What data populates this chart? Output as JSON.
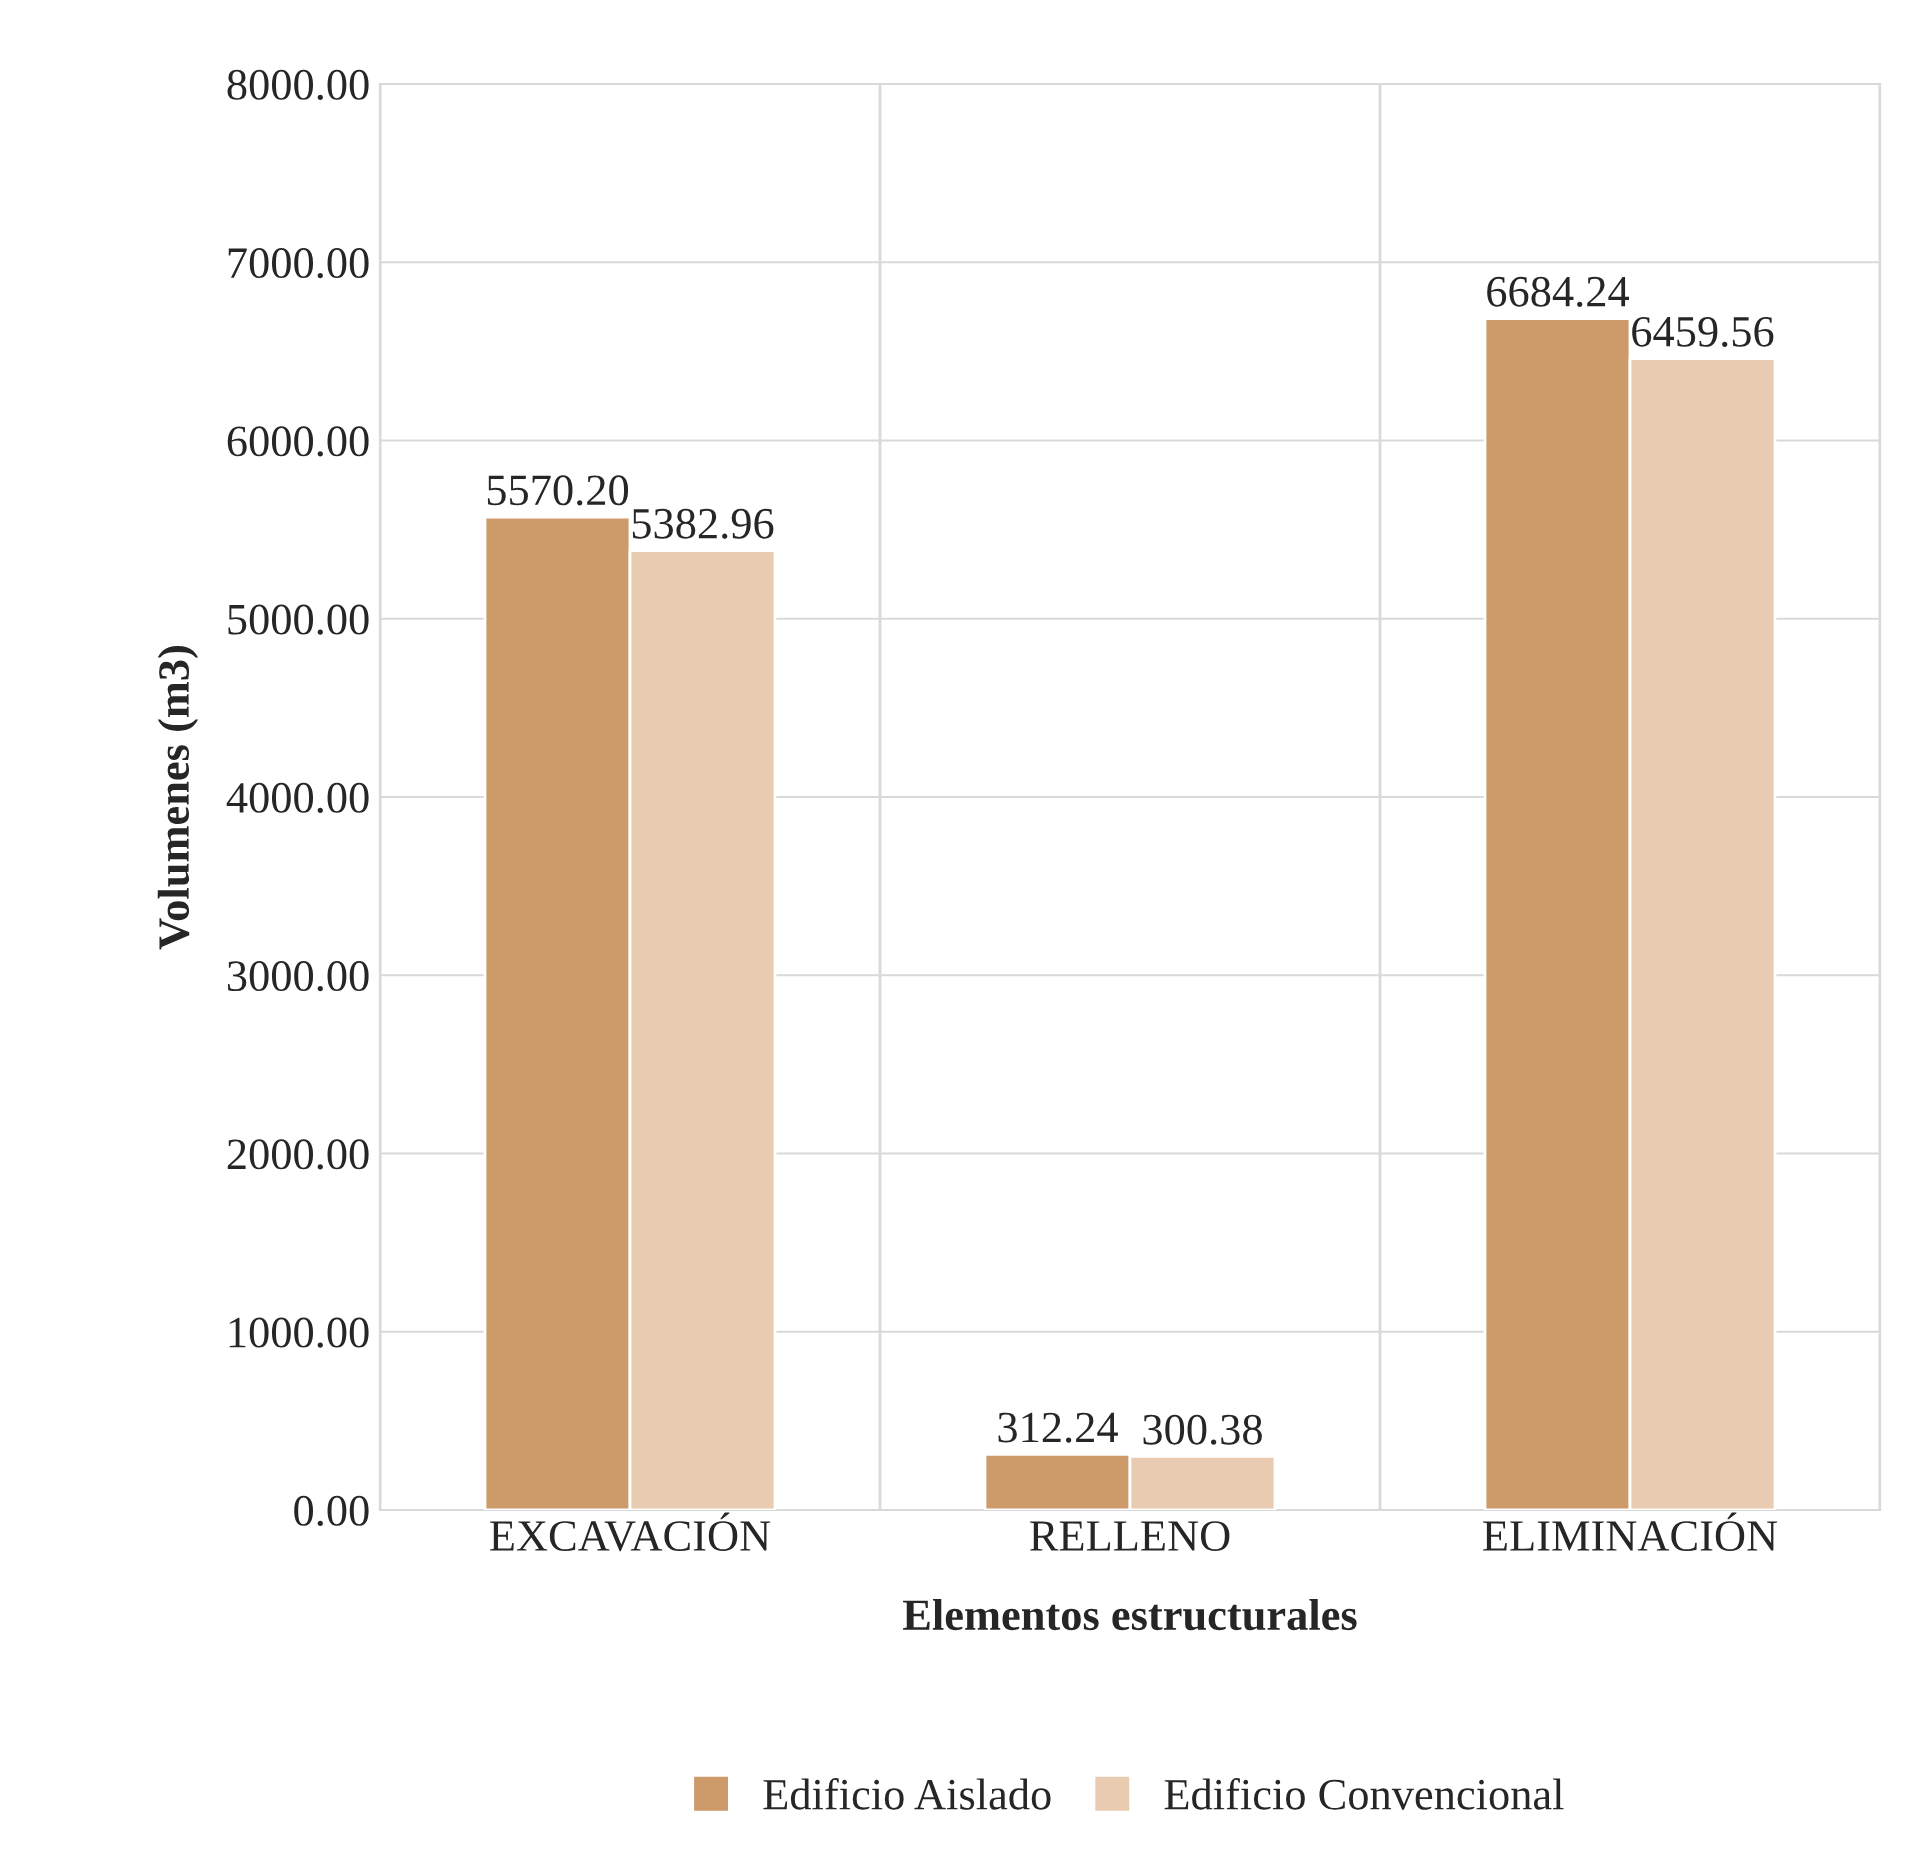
{
  "chart_data": {
    "type": "bar",
    "xlabel": "Elementos estructurales",
    "ylabel": "Volumenes (m3)",
    "categories": [
      "EXCAVACIÓN",
      "RELLENO",
      "ELIMINACIÓN"
    ],
    "series": [
      {
        "name": "Edificio Aislado",
        "color": "#cd9b6a",
        "values": [
          5570.2,
          312.24,
          6684.24
        ],
        "value_labels": [
          "5570.20",
          "312.24",
          "6684.24"
        ]
      },
      {
        "name": "Edificio Convencional",
        "color": "#e8cbb0",
        "values": [
          5382.96,
          300.38,
          6459.56
        ],
        "value_labels": [
          "5382.96",
          "300.38",
          "6459.56"
        ]
      }
    ],
    "ylim": [
      0,
      8000
    ],
    "yticks": [
      {
        "value": 0,
        "label": "0.00"
      },
      {
        "value": 1000,
        "label": "1000.00"
      },
      {
        "value": 2000,
        "label": "2000.00"
      },
      {
        "value": 3000,
        "label": "3000.00"
      },
      {
        "value": 4000,
        "label": "4000.00"
      },
      {
        "value": 5000,
        "label": "5000.00"
      },
      {
        "value": 6000,
        "label": "6000.00"
      },
      {
        "value": 7000,
        "label": "7000.00"
      },
      {
        "value": 8000,
        "label": "8000.00"
      }
    ],
    "grid": true,
    "legend": "bottom"
  }
}
